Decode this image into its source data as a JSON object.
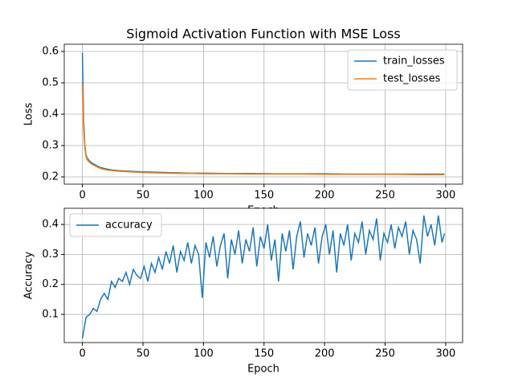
{
  "chart_data": [
    {
      "type": "line",
      "title": "Sigmoid Activation Function with MSE Loss",
      "x_label": "Epoch",
      "y_label": "Loss",
      "x": [
        0,
        1,
        2,
        3,
        4,
        5,
        6,
        7,
        8,
        10,
        12,
        15,
        20,
        25,
        30,
        40,
        50,
        60,
        70,
        80,
        90,
        100,
        120,
        140,
        160,
        180,
        200,
        220,
        240,
        260,
        280,
        299
      ],
      "series": [
        {
          "name": "train_losses",
          "color": "#1f77b4",
          "values": [
            0.595,
            0.38,
            0.3,
            0.27,
            0.26,
            0.255,
            0.25,
            0.247,
            0.244,
            0.24,
            0.235,
            0.23,
            0.225,
            0.222,
            0.22,
            0.218,
            0.216,
            0.215,
            0.214,
            0.213,
            0.212,
            0.212,
            0.211,
            0.211,
            0.21,
            0.21,
            0.21,
            0.209,
            0.209,
            0.209,
            0.209,
            0.209
          ]
        },
        {
          "name": "test_losses",
          "color": "#ff7f0e",
          "values": [
            0.495,
            0.35,
            0.29,
            0.265,
            0.255,
            0.25,
            0.246,
            0.243,
            0.24,
            0.236,
            0.232,
            0.227,
            0.222,
            0.22,
            0.218,
            0.216,
            0.214,
            0.213,
            0.212,
            0.211,
            0.211,
            0.21,
            0.21,
            0.209,
            0.209,
            0.209,
            0.208,
            0.208,
            0.208,
            0.208,
            0.207,
            0.207
          ]
        }
      ],
      "xlim": [
        -15,
        314
      ],
      "ylim": [
        0.177,
        0.623
      ],
      "xticks": [
        0,
        50,
        100,
        150,
        200,
        250,
        300
      ],
      "yticks": [
        0.2,
        0.3,
        0.4,
        0.5,
        0.6
      ],
      "grid": true,
      "legend": "upper-right"
    },
    {
      "type": "line",
      "x_label": "Epoch",
      "y_label": "Accuracy",
      "x": [
        0,
        3,
        6,
        9,
        12,
        15,
        18,
        21,
        24,
        27,
        30,
        33,
        36,
        39,
        42,
        45,
        48,
        51,
        54,
        57,
        60,
        63,
        66,
        69,
        72,
        75,
        78,
        81,
        84,
        87,
        90,
        93,
        96,
        99,
        102,
        105,
        108,
        111,
        114,
        117,
        120,
        123,
        126,
        129,
        132,
        135,
        138,
        141,
        144,
        147,
        150,
        153,
        156,
        159,
        162,
        165,
        168,
        171,
        174,
        177,
        180,
        183,
        186,
        189,
        192,
        195,
        198,
        201,
        204,
        207,
        210,
        213,
        216,
        219,
        222,
        225,
        228,
        231,
        234,
        237,
        240,
        243,
        246,
        249,
        252,
        255,
        258,
        261,
        264,
        267,
        270,
        273,
        276,
        279,
        282,
        285,
        288,
        291,
        294,
        297,
        299
      ],
      "series": [
        {
          "name": "accuracy",
          "color": "#1f77b4",
          "values": [
            0.02,
            0.09,
            0.1,
            0.12,
            0.11,
            0.15,
            0.17,
            0.15,
            0.21,
            0.19,
            0.22,
            0.21,
            0.24,
            0.2,
            0.25,
            0.23,
            0.22,
            0.26,
            0.21,
            0.27,
            0.24,
            0.29,
            0.25,
            0.31,
            0.27,
            0.33,
            0.24,
            0.31,
            0.28,
            0.34,
            0.27,
            0.33,
            0.3,
            0.155,
            0.34,
            0.29,
            0.36,
            0.26,
            0.33,
            0.37,
            0.22,
            0.35,
            0.3,
            0.38,
            0.27,
            0.35,
            0.31,
            0.39,
            0.26,
            0.36,
            0.32,
            0.4,
            0.28,
            0.35,
            0.21,
            0.37,
            0.31,
            0.38,
            0.25,
            0.36,
            0.41,
            0.29,
            0.37,
            0.33,
            0.39,
            0.27,
            0.36,
            0.4,
            0.3,
            0.38,
            0.24,
            0.37,
            0.33,
            0.4,
            0.28,
            0.37,
            0.34,
            0.41,
            0.3,
            0.38,
            0.35,
            0.42,
            0.28,
            0.37,
            0.34,
            0.4,
            0.32,
            0.39,
            0.36,
            0.41,
            0.3,
            0.38,
            0.35,
            0.27,
            0.43,
            0.36,
            0.4,
            0.33,
            0.43,
            0.34,
            0.37
          ]
        }
      ],
      "xlim": [
        -15,
        314
      ],
      "ylim": [
        0.006,
        0.454
      ],
      "xticks": [
        0,
        50,
        100,
        150,
        200,
        250,
        300
      ],
      "yticks": [
        0.1,
        0.2,
        0.3,
        0.4
      ],
      "grid": true,
      "legend": "upper-left"
    }
  ]
}
